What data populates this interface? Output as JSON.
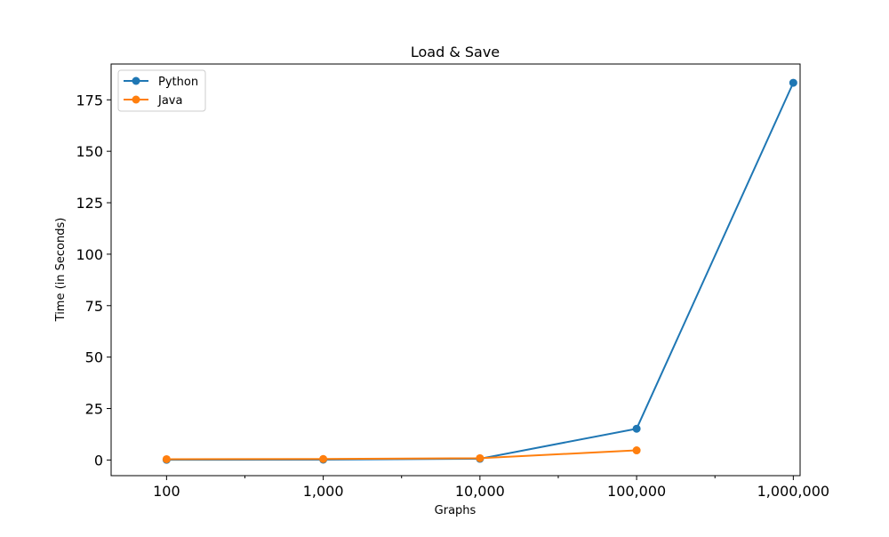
{
  "chart_data": {
    "type": "line",
    "title": "Load & Save",
    "xlabel": "Graphs",
    "ylabel": "Time (in Seconds)",
    "categories": [
      "100",
      "1,000",
      "10,000",
      "100,000",
      "1,000,000"
    ],
    "ylim": [
      -7.6,
      192.4
    ],
    "yticks": [
      0,
      25,
      50,
      75,
      100,
      125,
      150,
      175
    ],
    "grid": false,
    "legend": "top-left",
    "series": [
      {
        "name": "Python",
        "color": "#1f77b4",
        "values": [
          0.1,
          0.2,
          0.6,
          15.2,
          183.3
        ]
      },
      {
        "name": "Java",
        "color": "#ff7f0e",
        "values": [
          0.4,
          0.5,
          0.9,
          4.7,
          null
        ]
      }
    ]
  }
}
